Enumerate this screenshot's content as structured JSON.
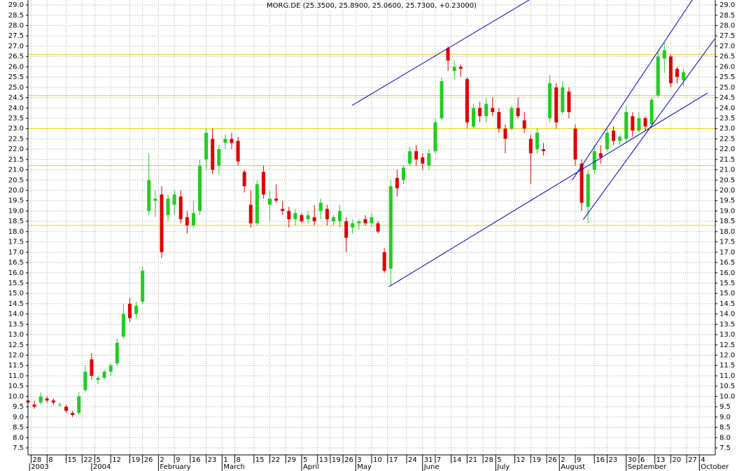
{
  "chart_data": {
    "type": "candlestick",
    "title": "MORG.DE (25.3500, 25.8900, 25.0600, 25.7300, +0.23000)",
    "up_color": "#22cc22",
    "down_color": "#e00000",
    "level_color": "#f0d000",
    "trend_color": "#0000cc",
    "grid": true,
    "xlim": [
      0,
      216
    ],
    "ylim": [
      7.16,
      29.24
    ],
    "yticks": [
      {
        "value": 7.5,
        "label": "7.5"
      },
      {
        "value": 8,
        "label": "8.0"
      },
      {
        "value": 8.5,
        "label": "8.5"
      },
      {
        "value": 9,
        "label": "9.0"
      },
      {
        "value": 9.5,
        "label": "9.5"
      },
      {
        "value": 10,
        "label": "10.0"
      },
      {
        "value": 10.5,
        "label": "10.5"
      },
      {
        "value": 11,
        "label": "11.0"
      },
      {
        "value": 11.5,
        "label": "11.5"
      },
      {
        "value": 12,
        "label": "12.0"
      },
      {
        "value": 12.5,
        "label": "12.5"
      },
      {
        "value": 13,
        "label": "13.0"
      },
      {
        "value": 13.5,
        "label": "13.5"
      },
      {
        "value": 14,
        "label": "14.0"
      },
      {
        "value": 14.5,
        "label": "14.5"
      },
      {
        "value": 15,
        "label": "15.0"
      },
      {
        "value": 15.5,
        "label": "15.5"
      },
      {
        "value": 16,
        "label": "16.0"
      },
      {
        "value": 16.5,
        "label": "16.5"
      },
      {
        "value": 17,
        "label": "17.0"
      },
      {
        "value": 17.5,
        "label": "17.5"
      },
      {
        "value": 18,
        "label": "18.0"
      },
      {
        "value": 18.5,
        "label": "18.5"
      },
      {
        "value": 19,
        "label": "19.0"
      },
      {
        "value": 19.5,
        "label": "19.5"
      },
      {
        "value": 20,
        "label": "20.0"
      },
      {
        "value": 20.5,
        "label": "20.5"
      },
      {
        "value": 21,
        "label": "21.0"
      },
      {
        "value": 21.5,
        "label": "21.5"
      },
      {
        "value": 22,
        "label": "22.0"
      },
      {
        "value": 22.5,
        "label": "22.5"
      },
      {
        "value": 23,
        "label": "23.0"
      },
      {
        "value": 23.5,
        "label": "23.5"
      },
      {
        "value": 24,
        "label": "24.0"
      },
      {
        "value": 24.5,
        "label": "24.5"
      },
      {
        "value": 25,
        "label": "25.0"
      },
      {
        "value": 25.5,
        "label": "25.5"
      },
      {
        "value": 26,
        "label": "26.0"
      },
      {
        "value": 26.5,
        "label": "26.5"
      },
      {
        "value": 27,
        "label": "27.0"
      },
      {
        "value": 27.5,
        "label": "27.5"
      },
      {
        "value": 28,
        "label": "28.0"
      },
      {
        "value": 28.5,
        "label": "28.5"
      },
      {
        "value": 29,
        "label": "29.0"
      }
    ],
    "xticks": [
      {
        "value": 1,
        "label": "28"
      },
      {
        "value": 6,
        "label": "8"
      },
      {
        "value": 12,
        "label": "15"
      },
      {
        "value": 17,
        "label": "22"
      },
      {
        "value": 21,
        "label": "5"
      },
      {
        "value": 26,
        "label": "12"
      },
      {
        "value": 32,
        "label": "19"
      },
      {
        "value": 36,
        "label": "26"
      },
      {
        "value": 41,
        "label": "2"
      },
      {
        "value": 46,
        "label": "9"
      },
      {
        "value": 51,
        "label": "16"
      },
      {
        "value": 56,
        "label": "23"
      },
      {
        "value": 61,
        "label": "1"
      },
      {
        "value": 65,
        "label": "8"
      },
      {
        "value": 71,
        "label": "15"
      },
      {
        "value": 76,
        "label": "22"
      },
      {
        "value": 81,
        "label": "29"
      },
      {
        "value": 86,
        "label": "5"
      },
      {
        "value": 91,
        "label": "13"
      },
      {
        "value": 95,
        "label": "19"
      },
      {
        "value": 99,
        "label": "26"
      },
      {
        "value": 103,
        "label": "3"
      },
      {
        "value": 108,
        "label": "10"
      },
      {
        "value": 113,
        "label": "17"
      },
      {
        "value": 119,
        "label": "24"
      },
      {
        "value": 124,
        "label": "31"
      },
      {
        "value": 128,
        "label": "7"
      },
      {
        "value": 133,
        "label": "14"
      },
      {
        "value": 138,
        "label": "21"
      },
      {
        "value": 143,
        "label": "28"
      },
      {
        "value": 147,
        "label": "5"
      },
      {
        "value": 153,
        "label": "12"
      },
      {
        "value": 158,
        "label": "19"
      },
      {
        "value": 163,
        "label": "26"
      },
      {
        "value": 167,
        "label": "2"
      },
      {
        "value": 172,
        "label": "9"
      },
      {
        "value": 178,
        "label": "16"
      },
      {
        "value": 182,
        "label": "23"
      },
      {
        "value": 188,
        "label": "30"
      },
      {
        "value": 192,
        "label": "6"
      },
      {
        "value": 197,
        "label": "13"
      },
      {
        "value": 202,
        "label": "20"
      },
      {
        "value": 207,
        "label": "27"
      },
      {
        "value": 211,
        "label": "4"
      }
    ],
    "month_ticks": [
      {
        "value": 0.5,
        "label": "2003"
      },
      {
        "value": 20,
        "label": "2004"
      },
      {
        "value": 41,
        "label": "February"
      },
      {
        "value": 61,
        "label": "March"
      },
      {
        "value": 86,
        "label": "April"
      },
      {
        "value": 103,
        "label": "May"
      },
      {
        "value": 124,
        "label": "June"
      },
      {
        "value": 147,
        "label": "July"
      },
      {
        "value": 167,
        "label": "August"
      },
      {
        "value": 188,
        "label": "September"
      },
      {
        "value": 211,
        "label": "October"
      }
    ],
    "levels": [
      26.6,
      24.6,
      23.0,
      21.2,
      18.3
    ],
    "trend_lines": [
      {
        "x": [
          101.8,
          157.6
        ],
        "y": [
          24.12,
          29.25
        ]
      },
      {
        "x": [
          113.4,
          213.6
        ],
        "y": [
          15.32,
          24.73
        ]
      },
      {
        "x": [
          171,
          208.8
        ],
        "y": [
          20.49,
          29.25
        ]
      },
      {
        "x": [
          174.5,
          215.8
        ],
        "y": [
          18.58,
          27.35
        ]
      }
    ],
    "x": [
      0,
      2,
      4,
      6,
      8,
      10,
      12,
      14,
      16,
      18,
      20,
      22,
      24,
      26,
      28,
      30,
      32,
      34,
      36,
      38,
      40,
      42,
      44,
      46,
      48,
      50,
      52,
      54,
      56,
      58,
      60,
      62,
      64,
      66,
      68,
      70,
      72,
      74,
      76,
      78,
      80,
      82,
      84,
      86,
      88,
      90,
      92,
      94,
      96,
      98,
      100,
      102,
      104,
      106,
      108,
      110,
      112,
      114,
      116,
      118,
      120,
      122,
      124,
      126,
      128,
      130,
      132,
      134,
      136,
      138,
      140,
      142,
      144,
      146,
      148,
      150,
      152,
      154,
      156,
      158,
      160,
      162,
      164,
      166,
      168,
      170,
      172,
      174,
      176,
      178,
      180,
      182,
      184,
      186,
      188,
      190,
      192,
      194,
      196,
      198,
      200,
      202,
      204,
      206
    ],
    "ohlc": [
      [
        9.8,
        10.0,
        9.6,
        9.7
      ],
      [
        9.6,
        9.8,
        9.4,
        9.5
      ],
      [
        9.7,
        10.2,
        9.6,
        10.0
      ],
      [
        9.9,
        10.0,
        9.7,
        9.8
      ],
      [
        9.8,
        9.9,
        9.6,
        9.7
      ],
      [
        9.6,
        9.7,
        9.5,
        9.6
      ],
      [
        9.5,
        9.6,
        9.2,
        9.3
      ],
      [
        9.2,
        9.3,
        9.0,
        9.1
      ],
      [
        9.2,
        10.2,
        9.1,
        10.0
      ],
      [
        10.3,
        11.5,
        10.2,
        11.2
      ],
      [
        11.8,
        12.1,
        10.8,
        11.0
      ],
      [
        10.8,
        11.0,
        10.6,
        10.9
      ],
      [
        10.9,
        11.3,
        10.8,
        11.2
      ],
      [
        11.2,
        11.6,
        11.0,
        11.5
      ],
      [
        11.6,
        12.8,
        11.5,
        12.6
      ],
      [
        12.9,
        14.5,
        12.8,
        14.0
      ],
      [
        14.5,
        14.8,
        13.6,
        13.8
      ],
      [
        14.0,
        14.6,
        13.8,
        14.4
      ],
      [
        14.6,
        16.3,
        14.5,
        16.1
      ],
      [
        19.0,
        21.8,
        18.8,
        20.5
      ],
      [
        19.5,
        20.0,
        18.7,
        19.6
      ],
      [
        19.8,
        20.2,
        16.7,
        17.0
      ],
      [
        18.8,
        19.8,
        18.5,
        19.6
      ],
      [
        19.3,
        20.0,
        18.8,
        19.8
      ],
      [
        19.7,
        20.0,
        18.4,
        18.6
      ],
      [
        18.7,
        19.0,
        17.9,
        18.3
      ],
      [
        18.3,
        19.5,
        18.2,
        18.9
      ],
      [
        19.0,
        21.5,
        18.8,
        21.2
      ],
      [
        21.5,
        23.0,
        21.0,
        22.8
      ],
      [
        22.5,
        23.0,
        20.8,
        21.0
      ],
      [
        21.2,
        22.2,
        20.8,
        22.0
      ],
      [
        22.3,
        22.7,
        22.0,
        22.5
      ],
      [
        22.5,
        22.8,
        22.0,
        22.3
      ],
      [
        22.4,
        22.6,
        21.2,
        21.4
      ],
      [
        20.9,
        21.0,
        19.9,
        20.2
      ],
      [
        19.3,
        20.0,
        18.2,
        18.4
      ],
      [
        18.4,
        20.5,
        18.3,
        20.3
      ],
      [
        20.9,
        21.2,
        19.6,
        19.8
      ],
      [
        19.3,
        20.0,
        18.5,
        19.6
      ],
      [
        19.6,
        20.3,
        19.4,
        19.5
      ],
      [
        19.1,
        19.5,
        18.8,
        19.0
      ],
      [
        19.0,
        19.2,
        18.2,
        18.6
      ],
      [
        18.6,
        19.1,
        18.3,
        18.9
      ],
      [
        18.8,
        18.9,
        18.4,
        18.5
      ],
      [
        18.6,
        19.0,
        18.4,
        18.8
      ],
      [
        18.7,
        19.3,
        18.3,
        18.5
      ],
      [
        19.0,
        19.6,
        18.6,
        19.4
      ],
      [
        19.1,
        19.3,
        18.3,
        18.6
      ],
      [
        18.5,
        18.8,
        18.3,
        18.7
      ],
      [
        18.5,
        19.3,
        18.2,
        19.0
      ],
      [
        18.5,
        18.7,
        17.0,
        17.7
      ],
      [
        18.2,
        18.6,
        17.9,
        18.4
      ],
      [
        18.4,
        18.6,
        18.1,
        18.5
      ],
      [
        18.6,
        18.8,
        18.3,
        18.4
      ],
      [
        18.4,
        18.9,
        18.2,
        18.7
      ],
      [
        18.4,
        18.5,
        17.9,
        18.0
      ],
      [
        17.0,
        17.2,
        16.0,
        16.1
      ],
      [
        16.2,
        20.5,
        15.4,
        20.2
      ],
      [
        20.6,
        21.0,
        19.7,
        20.1
      ],
      [
        20.5,
        21.2,
        20.3,
        21.1
      ],
      [
        21.3,
        22.1,
        21.2,
        21.9
      ],
      [
        21.9,
        22.2,
        21.2,
        21.5
      ],
      [
        21.6,
        21.8,
        21.0,
        21.3
      ],
      [
        21.2,
        22.0,
        21.0,
        21.8
      ],
      [
        21.9,
        23.5,
        21.8,
        23.3
      ],
      [
        23.5,
        25.5,
        23.4,
        25.3
      ],
      [
        26.9,
        27.0,
        25.8,
        26.3
      ],
      [
        25.8,
        26.3,
        25.4,
        26.0
      ],
      [
        26.0,
        26.1,
        25.5,
        25.9
      ],
      [
        25.4,
        25.5,
        23.0,
        23.3
      ],
      [
        23.1,
        24.2,
        23.0,
        24.0
      ],
      [
        24.0,
        24.3,
        23.3,
        23.6
      ],
      [
        23.6,
        24.5,
        23.3,
        24.2
      ],
      [
        24.0,
        24.5,
        23.6,
        23.8
      ],
      [
        23.8,
        24.0,
        22.8,
        23.0
      ],
      [
        23.0,
        23.2,
        21.8,
        22.5
      ],
      [
        23.0,
        24.1,
        22.9,
        24.0
      ],
      [
        24.0,
        24.5,
        23.5,
        23.6
      ],
      [
        23.4,
        23.8,
        22.8,
        23.0
      ],
      [
        22.5,
        22.7,
        20.3,
        21.8
      ],
      [
        22.0,
        23.0,
        21.8,
        22.8
      ],
      [
        22.0,
        22.3,
        21.7,
        21.9
      ],
      [
        23.5,
        25.6,
        23.3,
        25.2
      ],
      [
        25.0,
        25.2,
        23.0,
        23.3
      ],
      [
        23.8,
        25.3,
        23.7,
        25.0
      ],
      [
        24.8,
        25.0,
        23.5,
        23.8
      ],
      [
        23.0,
        23.2,
        21.2,
        21.5
      ],
      [
        21.3,
        21.5,
        19.0,
        19.4
      ],
      [
        19.2,
        21.0,
        18.4,
        20.8
      ],
      [
        21.0,
        22.2,
        20.8,
        21.9
      ],
      [
        21.8,
        22.2,
        21.3,
        21.6
      ],
      [
        22.0,
        23.0,
        21.9,
        22.8
      ],
      [
        22.9,
        23.1,
        22.2,
        22.4
      ],
      [
        22.4,
        22.7,
        22.2,
        22.6
      ],
      [
        22.5,
        24.1,
        22.3,
        23.8
      ],
      [
        23.6,
        23.8,
        22.6,
        22.9
      ],
      [
        22.9,
        23.8,
        22.8,
        23.5
      ],
      [
        23.5,
        23.6,
        22.9,
        23.1
      ],
      [
        23.2,
        24.5,
        23.1,
        24.4
      ],
      [
        24.6,
        26.8,
        24.5,
        26.5
      ],
      [
        26.4,
        27.2,
        25.7,
        26.8
      ],
      [
        26.5,
        26.6,
        25.0,
        25.2
      ],
      [
        25.9,
        26.0,
        25.2,
        25.5
      ],
      [
        25.35,
        25.89,
        25.06,
        25.73
      ]
    ]
  }
}
